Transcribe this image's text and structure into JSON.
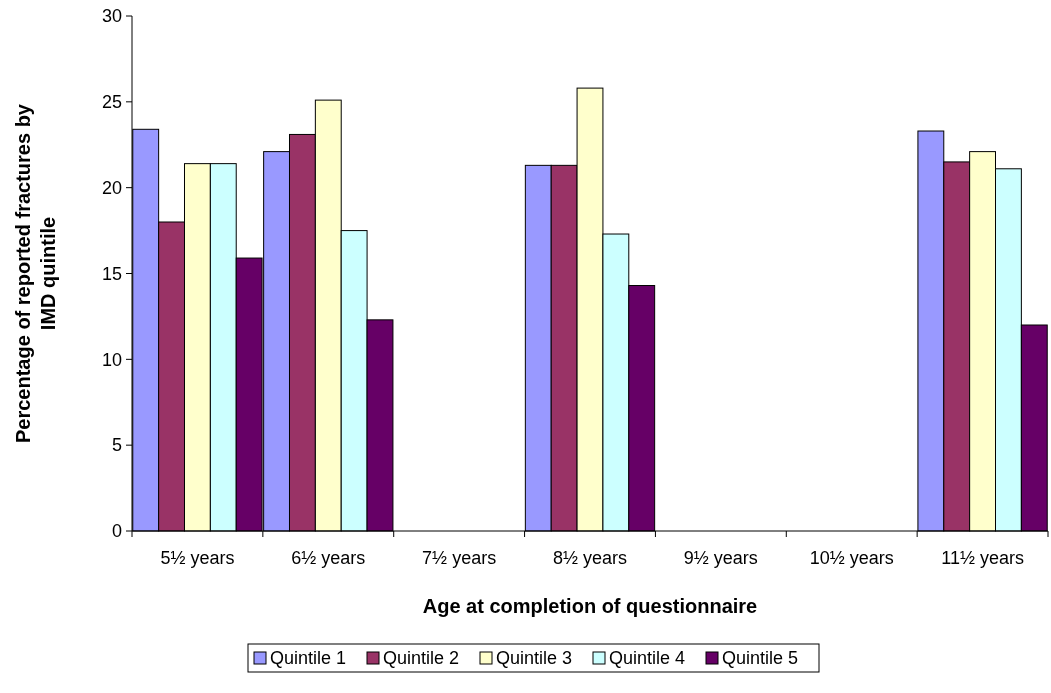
{
  "chart_data": {
    "type": "bar",
    "xlabel": "Age at completion of questionnaire",
    "ylabel": "Percentage of reported fractures by IMD quintile",
    "categories": [
      "5½ years",
      "6½ years",
      "7½ years",
      "8½ years",
      "9½ years",
      "10½ years",
      "11½ years"
    ],
    "series": [
      {
        "name": "Quintile 1",
        "color": "#9999ff",
        "values": [
          23.4,
          22.1,
          null,
          21.3,
          null,
          null,
          23.3
        ]
      },
      {
        "name": "Quintile 2",
        "color": "#993366",
        "values": [
          18.0,
          23.1,
          null,
          21.3,
          null,
          null,
          21.5
        ]
      },
      {
        "name": "Quintile 3",
        "color": "#ffffcc",
        "values": [
          21.4,
          25.1,
          null,
          25.8,
          null,
          null,
          22.1
        ]
      },
      {
        "name": "Quintile 4",
        "color": "#ccffff",
        "values": [
          21.4,
          17.5,
          null,
          17.3,
          null,
          null,
          21.1
        ]
      },
      {
        "name": "Quintile 5",
        "color": "#660066",
        "values": [
          15.9,
          12.3,
          null,
          14.3,
          null,
          null,
          12.0
        ]
      }
    ],
    "ylim": [
      0,
      30
    ],
    "yticks": [
      0,
      5,
      10,
      15,
      20,
      25,
      30
    ],
    "grid": false,
    "legend": "bottom"
  }
}
